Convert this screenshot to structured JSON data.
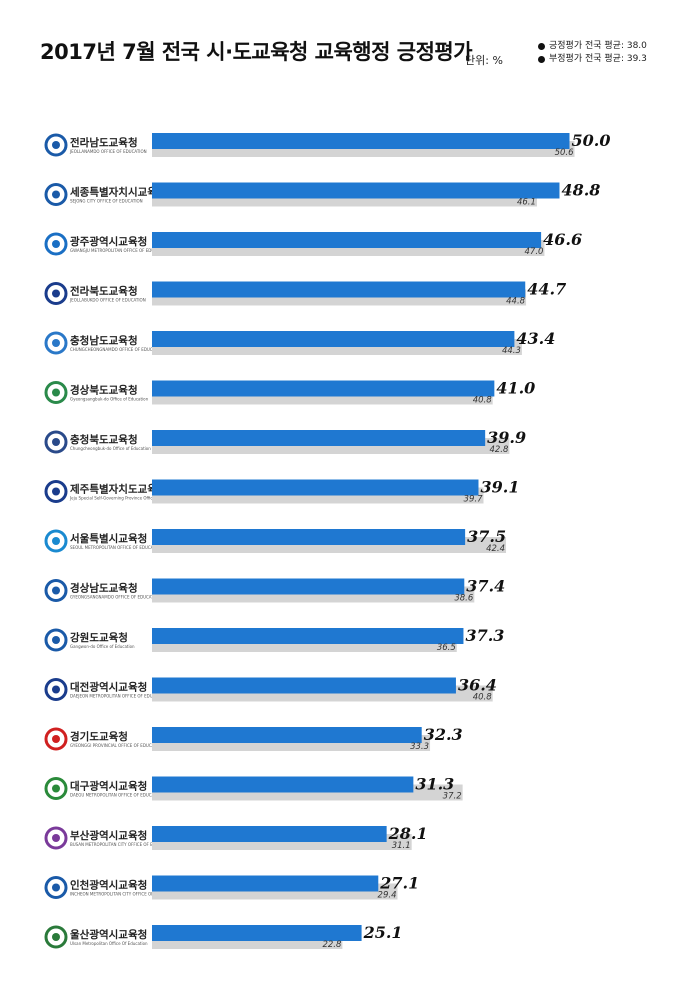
{
  "header": {
    "title": "2017년 7월 전국 시·도교육청 교육행정 긍정평가",
    "unit": "단위: %"
  },
  "legend": {
    "items": [
      {
        "label": "긍정평가 전국 평균: 38.0"
      },
      {
        "label": "부정평가 전국 평균: 39.3"
      }
    ]
  },
  "chart_data": {
    "type": "bar",
    "orientation": "horizontal",
    "title": "2017년 7월 전국 시·도교육청 교육행정 긍정평가",
    "unit": "단위: %",
    "categories": [
      "전라남도교육청",
      "세종특별자치시교육청",
      "광주광역시교육청",
      "전라북도교육청",
      "충청남도교육청",
      "경상북도교육청",
      "충청북도교육청",
      "제주특별자치도교육청",
      "서울특별시교육청",
      "경상남도교육청",
      "강원도교육청",
      "대전광역시교육청",
      "경기도교육청",
      "대구광역시교육청",
      "부산광역시교육청",
      "인천광역시교육청",
      "울산광역시교육청"
    ],
    "logo_subtitles": [
      "JEOLLANAMDO OFFICE OF EDUCATION",
      "SEJONG CITY OFFICE OF EDUCATION",
      "GWANGJU METROPOLITAN OFFICE OF EDUCATION",
      "JEOLLABUKDO OFFICE OF EDUCATION",
      "CHUNGCHEONGNAMDO OFFICE OF EDUCATION",
      "Gyeongsangbuk-do Office of Education",
      "Chungcheongbuk-do Office of Education",
      "Jeju Special Self-Governing Province Office of Education",
      "SEOUL METROPOLITAN OFFICE OF EDUCATION",
      "GYEONGSANGNAMDO OFFICE OF EDUCATION",
      "Gangwon-do Office of Education",
      "DAEJEON METROPOLITAN OFFICE OF EDUCATION",
      "GYEONGGI PROVINCIAL OFFICE OF EDUCATION",
      "DAEGU METROPOLITAN OFFICE OF EDUCATION",
      "BUSAN METROPOLITAN CITY OFFICE OF EDUCATION",
      "INCHEON METROPOLITAN CITY OFFICE OF EDUCATION",
      "Ulsan Metropolitan Office Of Education"
    ],
    "series": [
      {
        "name": "긍정평가",
        "color": "#1f78d1",
        "values": [
          50.0,
          48.8,
          46.6,
          44.7,
          43.4,
          41.0,
          39.9,
          39.1,
          37.5,
          37.4,
          37.3,
          36.4,
          32.3,
          31.3,
          28.1,
          27.1,
          25.1
        ]
      },
      {
        "name": "부정평가",
        "color": "#d4d4d4",
        "values": [
          50.6,
          46.1,
          47.0,
          44.8,
          44.3,
          40.8,
          42.8,
          39.7,
          42.4,
          38.6,
          36.5,
          40.8,
          33.3,
          37.2,
          31.1,
          29.4,
          22.8
        ]
      }
    ],
    "logo_colors": [
      "#1a5aa8",
      "#1a5aa8",
      "#1a6fc4",
      "#1a3c8c",
      "#2a78c8",
      "#2a8a4a",
      "#2a4a8a",
      "#1a3c8c",
      "#1a8ad0",
      "#1a5aa8",
      "#1a5aa8",
      "#1a3c8c",
      "#d02020",
      "#2a8a3a",
      "#7a3a9a",
      "#1a5aa8",
      "#2a7a3a"
    ],
    "value_axis": {
      "visible": false
    },
    "grid": false,
    "legend_position": "top-right"
  }
}
